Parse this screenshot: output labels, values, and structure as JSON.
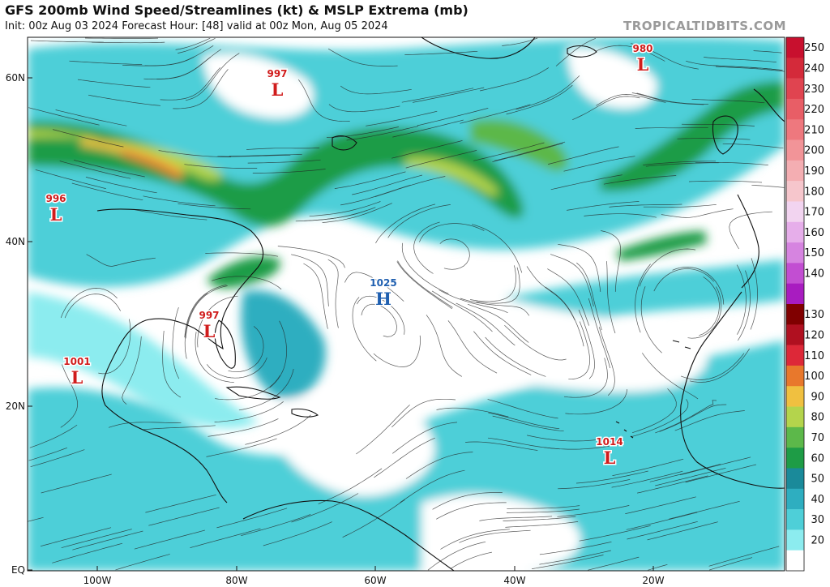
{
  "header": {
    "title": "GFS 200mb Wind Speed/Streamlines (kt) & MSLP Extrema (mb)",
    "subtitle": "Init: 00z Aug 03 2024   Forecast Hour: [48]   valid at 00z Mon, Aug 05 2024",
    "credit": "TROPICALTIDBITS.COM"
  },
  "map": {
    "lat_labels": [
      "60N",
      "40N",
      "20N",
      "EQ"
    ],
    "lon_labels": [
      "100W",
      "80W",
      "60W",
      "40W",
      "20W"
    ],
    "pressure_centers": [
      {
        "value": "997",
        "type": "L",
        "color": "#d01c1c"
      },
      {
        "value": "980",
        "type": "L",
        "color": "#d01c1c"
      },
      {
        "value": "996",
        "type": "L",
        "color": "#d01c1c"
      },
      {
        "value": "1025",
        "type": "H",
        "color": "#1f5fb0"
      },
      {
        "value": "997",
        "type": "L",
        "color": "#d01c1c"
      },
      {
        "value": "1001",
        "type": "L",
        "color": "#d01c1c"
      },
      {
        "value": "1014",
        "type": "L",
        "color": "#d01c1c"
      }
    ]
  },
  "colorbar": {
    "unit": "kt",
    "levels": [
      {
        "label": "250",
        "color": "#c8102e"
      },
      {
        "label": "240",
        "color": "#d42a3a"
      },
      {
        "label": "230",
        "color": "#e04450"
      },
      {
        "label": "220",
        "color": "#e85e66"
      },
      {
        "label": "210",
        "color": "#ee787e"
      },
      {
        "label": "200",
        "color": "#f29498"
      },
      {
        "label": "190",
        "color": "#f4aeb2"
      },
      {
        "label": "180",
        "color": "#f6c6cc"
      },
      {
        "label": "170",
        "color": "#f2d4f0"
      },
      {
        "label": "160",
        "color": "#e6aeea"
      },
      {
        "label": "150",
        "color": "#d684e0"
      },
      {
        "label": "140",
        "color": "#c24ed2"
      },
      {
        "label": "",
        "color": "#a81cc0"
      },
      {
        "label": "130",
        "color": "#800000"
      },
      {
        "label": "120",
        "color": "#b01020"
      },
      {
        "label": "110",
        "color": "#dd2838"
      },
      {
        "label": "100",
        "color": "#e8782c"
      },
      {
        "label": "90",
        "color": "#f0c040"
      },
      {
        "label": "80",
        "color": "#b4d44c"
      },
      {
        "label": "70",
        "color": "#5cb84a"
      },
      {
        "label": "60",
        "color": "#1e9c46"
      },
      {
        "label": "50",
        "color": "#1a8a9a"
      },
      {
        "label": "40",
        "color": "#2eaec0"
      },
      {
        "label": "30",
        "color": "#4ecfd8"
      },
      {
        "label": "20",
        "color": "#8cecef"
      },
      {
        "label": "",
        "color": "#ffffff"
      }
    ]
  }
}
